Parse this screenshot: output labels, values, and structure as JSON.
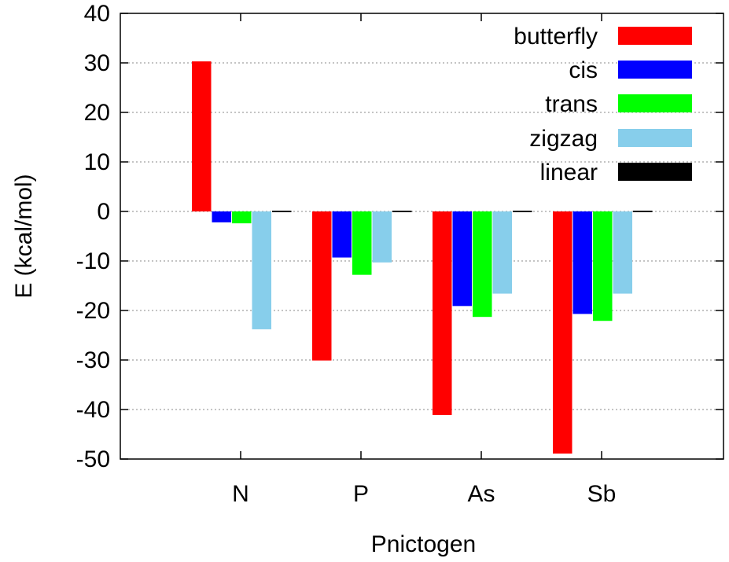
{
  "chart_data": {
    "type": "bar",
    "xlabel": "Pnictogen",
    "ylabel": "E (kcal/mol)",
    "ylim": [
      -50,
      40
    ],
    "yticks": [
      40,
      30,
      20,
      10,
      0,
      -10,
      -20,
      -30,
      -40,
      -50
    ],
    "grid": "horizontal dotted",
    "legend_position": "top-right",
    "categories": [
      "N",
      "P",
      "As",
      "Sb"
    ],
    "series": [
      {
        "name": "butterfly",
        "color": "#ff0000",
        "values": [
          30.3,
          -30.1,
          -41.1,
          -48.9
        ]
      },
      {
        "name": "cis",
        "color": "#0000ff",
        "values": [
          -2.2,
          -9.3,
          -19.1,
          -20.7
        ]
      },
      {
        "name": "trans",
        "color": "#00ff00",
        "values": [
          -2.4,
          -12.8,
          -21.3,
          -22.1
        ]
      },
      {
        "name": "zigzag",
        "color": "#87ceeb",
        "values": [
          -23.8,
          -10.3,
          -16.6,
          -16.6
        ]
      },
      {
        "name": "linear",
        "color": "#000000",
        "values": [
          0,
          0,
          0,
          0
        ]
      }
    ]
  }
}
